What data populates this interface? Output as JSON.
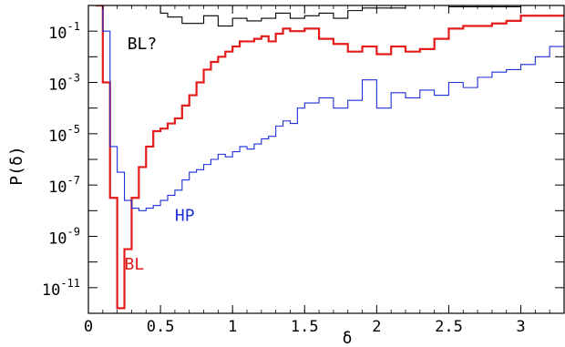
{
  "chart_data": {
    "type": "line",
    "step": true,
    "xlabel": "δ",
    "ylabel": "P(δ)",
    "xlim": [
      0,
      3.3
    ],
    "ylim_log10": [
      -12,
      0
    ],
    "yscale": "log",
    "grid": false,
    "x_ticks": [
      {
        "value": 0,
        "label": "0"
      },
      {
        "value": 0.5,
        "label": "0.5"
      },
      {
        "value": 1,
        "label": "1"
      },
      {
        "value": 1.5,
        "label": "1.5"
      },
      {
        "value": 2,
        "label": "2"
      },
      {
        "value": 2.5,
        "label": "2.5"
      },
      {
        "value": 3,
        "label": "3"
      }
    ],
    "y_ticks": [
      {
        "exp": -1,
        "base": "10",
        "sup": "-1"
      },
      {
        "exp": -3,
        "base": "10",
        "sup": "-3"
      },
      {
        "exp": -5,
        "base": "10",
        "sup": "-5"
      },
      {
        "exp": -7,
        "base": "10",
        "sup": "-7"
      },
      {
        "exp": -9,
        "base": "10",
        "sup": "-9"
      },
      {
        "exp": -11,
        "base": "10",
        "sup": "-11"
      }
    ],
    "series": [
      {
        "name": "BL?",
        "color": "#000000",
        "label_at": [
          0.27,
          -1.7
        ],
        "x": [
          0.05,
          0.1,
          0.15,
          0.5,
          0.55,
          0.65,
          0.8,
          0.9,
          1.0,
          1.1,
          1.2,
          1.3,
          1.4,
          1.5,
          1.6,
          1.7,
          1.8,
          1.9,
          2.0,
          2.2,
          2.5,
          2.8,
          3.0
        ],
        "log10_y": [
          0.0,
          0.0,
          0.0,
          -0.3,
          -0.45,
          -0.7,
          -0.4,
          -0.8,
          -0.5,
          -0.6,
          -0.5,
          -0.3,
          -0.5,
          -0.4,
          -0.3,
          -0.5,
          -0.2,
          -0.1,
          -0.1,
          0.0,
          -0.05,
          -0.05,
          0.0
        ]
      },
      {
        "name": "BL",
        "color": "#e31b1b",
        "label_at": [
          0.25,
          -10.3
        ],
        "x": [
          0.05,
          0.1,
          0.15,
          0.2,
          0.25,
          0.3,
          0.35,
          0.4,
          0.45,
          0.5,
          0.55,
          0.6,
          0.65,
          0.7,
          0.75,
          0.8,
          0.85,
          0.9,
          0.95,
          1.0,
          1.05,
          1.1,
          1.15,
          1.2,
          1.25,
          1.3,
          1.35,
          1.4,
          1.45,
          1.5,
          1.6,
          1.7,
          1.8,
          1.9,
          2.0,
          2.1,
          2.2,
          2.3,
          2.4,
          2.5,
          2.6,
          2.7,
          2.8,
          2.9,
          3.0
        ],
        "log10_y": [
          0.0,
          -3.0,
          -7.5,
          -11.8,
          -9.5,
          -7.5,
          -6.3,
          -5.5,
          -4.9,
          -4.8,
          -4.6,
          -4.4,
          -3.9,
          -3.5,
          -3.0,
          -2.5,
          -2.2,
          -2.0,
          -1.8,
          -1.6,
          -1.4,
          -1.4,
          -1.3,
          -1.2,
          -1.4,
          -1.1,
          -0.9,
          -1.0,
          -1.0,
          -0.9,
          -1.3,
          -1.5,
          -1.8,
          -1.6,
          -1.9,
          -1.6,
          -1.8,
          -1.7,
          -1.3,
          -0.9,
          -0.8,
          -0.8,
          -0.7,
          -0.6,
          -0.4
        ]
      },
      {
        "name": "HP",
        "color": "#1e2ed8",
        "label_at": [
          0.6,
          -8.4
        ],
        "x": [
          0.05,
          0.1,
          0.15,
          0.2,
          0.25,
          0.3,
          0.35,
          0.4,
          0.45,
          0.5,
          0.55,
          0.6,
          0.65,
          0.7,
          0.75,
          0.8,
          0.85,
          0.9,
          0.95,
          1.0,
          1.05,
          1.1,
          1.15,
          1.2,
          1.25,
          1.3,
          1.35,
          1.4,
          1.45,
          1.5,
          1.6,
          1.7,
          1.8,
          1.9,
          2.0,
          2.1,
          2.2,
          2.3,
          2.4,
          2.5,
          2.6,
          2.7,
          2.8,
          2.9,
          3.0,
          3.1,
          3.2
        ],
        "log10_y": [
          0.0,
          -1.0,
          -5.5,
          -6.5,
          -7.6,
          -7.9,
          -8.0,
          -7.9,
          -7.8,
          -7.6,
          -7.4,
          -7.2,
          -6.8,
          -6.5,
          -6.4,
          -6.2,
          -6.0,
          -5.8,
          -5.9,
          -5.7,
          -5.5,
          -5.6,
          -5.4,
          -5.2,
          -5.1,
          -4.7,
          -4.5,
          -4.6,
          -4.0,
          -3.8,
          -3.6,
          -4.0,
          -3.7,
          -2.9,
          -4.0,
          -3.4,
          -3.6,
          -3.3,
          -3.5,
          -3.0,
          -3.2,
          -2.8,
          -2.6,
          -2.5,
          -2.3,
          -2.0,
          -1.6
        ]
      }
    ]
  }
}
